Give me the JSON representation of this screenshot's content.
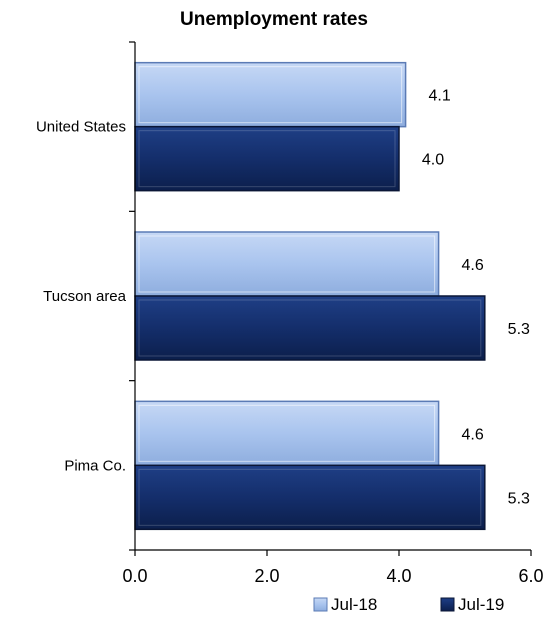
{
  "chart_data": {
    "type": "bar",
    "orientation": "horizontal",
    "title": "Unemployment rates",
    "categories": [
      "United States",
      "Tucson area",
      "Pima Co."
    ],
    "series": [
      {
        "name": "Jul-18",
        "values": [
          4.1,
          4.6,
          4.6
        ],
        "color": "#a9c4ee"
      },
      {
        "name": "Jul-19",
        "values": [
          4.0,
          5.3,
          5.3
        ],
        "color": "#142e6b"
      }
    ],
    "value_labels": [
      [
        "4.1",
        "4.6",
        "4.6"
      ],
      [
        "4.0",
        "5.3",
        "5.3"
      ]
    ],
    "xlim": [
      0,
      6
    ],
    "xticks": [
      "0.0",
      "2.0",
      "4.0",
      "6.0"
    ],
    "xlabel": "",
    "ylabel": "",
    "grid": false,
    "legend_position": "bottom-right"
  }
}
